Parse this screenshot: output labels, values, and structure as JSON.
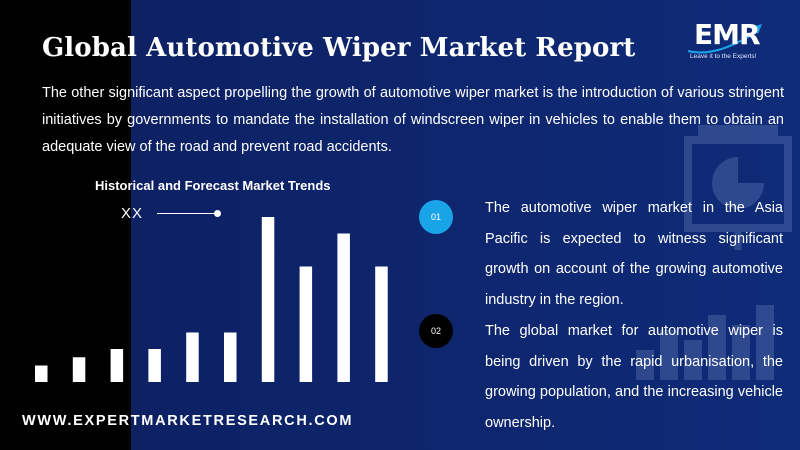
{
  "page": {
    "title": "Global Automotive Wiper Market Report",
    "intro": "The other significant aspect propelling the growth of automotive wiper market is the introduction of various stringent initiatives by governments to mandate the installation of windscreen wiper in vehicles to enable them to obtain an adequate view of the road and prevent road accidents.",
    "footer": "WWW.EXPERTMARKETRESEARCH.COM"
  },
  "logo": {
    "text": "EMR",
    "tagline": "Leave it to the Experts!"
  },
  "points": [
    {
      "number": "01",
      "text": "The automotive wiper market in the Asia Pacific is expected to witness significant growth on account of the growing automotive industry in the region."
    },
    {
      "number": "02",
      "text": "The global market for automotive wiper is being driven by the rapid urbanisation, the growing population, and the increasing vehicle ownership."
    }
  ],
  "colors": {
    "accent_blue": "#1aa4e8",
    "background": "#0c2366",
    "bar": "#ffffff"
  },
  "icons": [
    "presentation-board-icon",
    "bar-graph-icon"
  ],
  "chart_data": {
    "type": "bar",
    "title": "Historical and Forecast Market Trends",
    "legend": "XX",
    "categories": [
      "",
      "",
      "",
      "",
      "",
      "",
      "",
      "",
      "",
      ""
    ],
    "values": [
      1.0,
      1.5,
      2.0,
      2.0,
      3.0,
      3.0,
      10.0,
      7.0,
      9.0,
      7.0
    ],
    "ylim": [
      0,
      10
    ],
    "grid": false,
    "axes_visible": false
  }
}
